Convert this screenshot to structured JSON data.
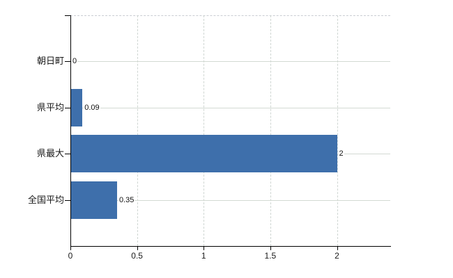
{
  "chart_data": {
    "type": "bar",
    "orientation": "horizontal",
    "title": "",
    "xlabel": "",
    "ylabel": "",
    "categories": [
      "朝日町",
      "県平均",
      "県最大",
      "全国平均"
    ],
    "values": [
      0,
      0.09,
      2,
      0.35
    ],
    "value_labels": [
      "0",
      "0.09",
      "2",
      "0.35"
    ],
    "x_ticks": [
      0,
      0.5,
      1,
      1.5,
      2
    ],
    "x_tick_labels": [
      "0",
      "0.5",
      "1",
      "1.5",
      "2"
    ],
    "xlim": [
      0,
      2.4
    ],
    "grid": true,
    "legend_position": "none"
  },
  "colors": {
    "background": "#ffffff",
    "bar": "#3e6fab",
    "axis": "#000000",
    "grid_horizontal": "#d3dad3",
    "grid_vertical": "#cfd6d2",
    "top_border": "#c9cdd2",
    "text": "#1a1a1a"
  }
}
